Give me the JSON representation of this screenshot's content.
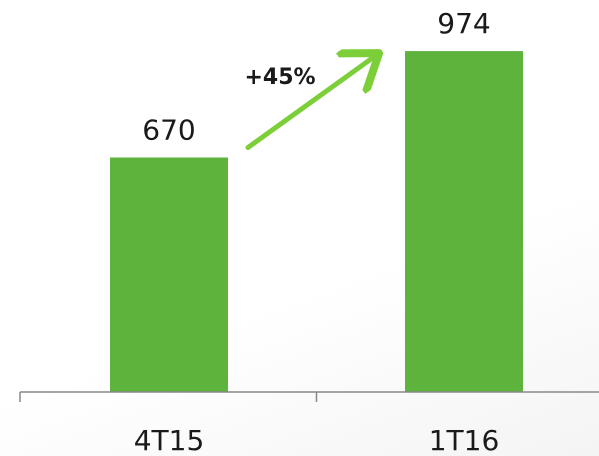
{
  "chart_data": {
    "type": "bar",
    "categories": [
      "4T15",
      "1T16"
    ],
    "values": [
      670,
      974
    ],
    "data_labels": [
      "670",
      "974"
    ],
    "title": "",
    "xlabel": "",
    "ylabel": "",
    "ylim": [
      0,
      1000
    ],
    "grid": false,
    "legend": "none",
    "annotation": {
      "text": "+45%",
      "from_category": "4T15",
      "to_category": "1T16"
    },
    "colors": {
      "bar": "#5db33c",
      "arrow": "#7dcf3a",
      "axis": "#888888",
      "text": "#1a1a1a"
    }
  }
}
